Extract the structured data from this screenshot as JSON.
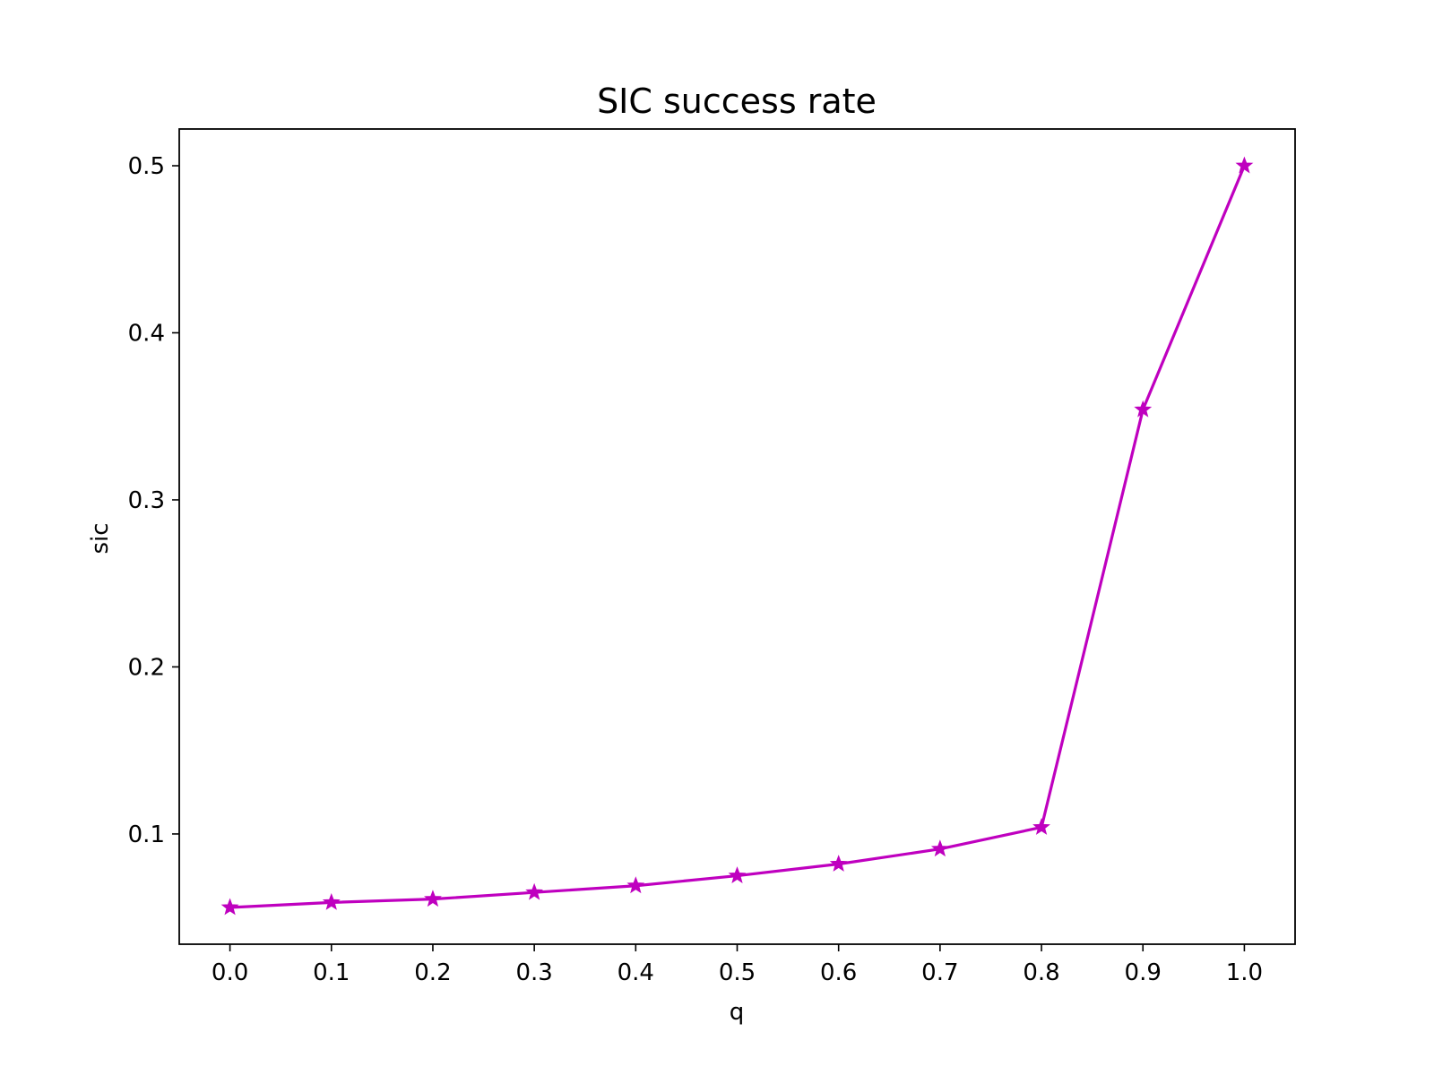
{
  "chart_data": {
    "type": "line",
    "title": "SIC success rate",
    "xlabel": "q",
    "ylabel": "sic",
    "xlim": [
      -0.05,
      1.05
    ],
    "ylim": [
      0.034,
      0.522
    ],
    "xticks": [
      "0.0",
      "0.1",
      "0.2",
      "0.3",
      "0.4",
      "0.5",
      "0.6",
      "0.7",
      "0.8",
      "0.9",
      "1.0"
    ],
    "yticks": [
      "0.1",
      "0.2",
      "0.3",
      "0.4",
      "0.5"
    ],
    "grid": false,
    "series": [
      {
        "color": "#bf00bf",
        "marker": "star",
        "x": [
          0.0,
          0.1,
          0.2,
          0.3,
          0.4,
          0.5,
          0.6,
          0.7,
          0.8,
          0.9,
          1.0
        ],
        "y": [
          0.056,
          0.059,
          0.061,
          0.065,
          0.069,
          0.075,
          0.082,
          0.091,
          0.104,
          0.354,
          0.5
        ]
      }
    ]
  }
}
